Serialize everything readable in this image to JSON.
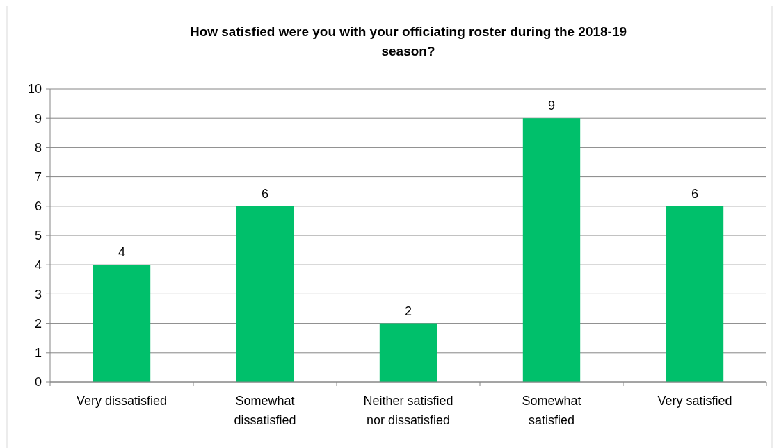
{
  "chart_data": {
    "type": "bar",
    "title": "How satisfied were you with your officiating roster during the 2018-19 season?",
    "categories": [
      "Very dissatisfied",
      "Somewhat dissatisfied",
      "Neither satisfied nor dissatisfied",
      "Somewhat satisfied",
      "Very satisfied"
    ],
    "values": [
      4,
      6,
      2,
      9,
      6
    ],
    "color": "#00c06b",
    "ylim": [
      0,
      10
    ],
    "yticks": [
      0,
      1,
      2,
      3,
      4,
      5,
      6,
      7,
      8,
      9,
      10
    ],
    "grid": "y",
    "data_labels": true
  }
}
